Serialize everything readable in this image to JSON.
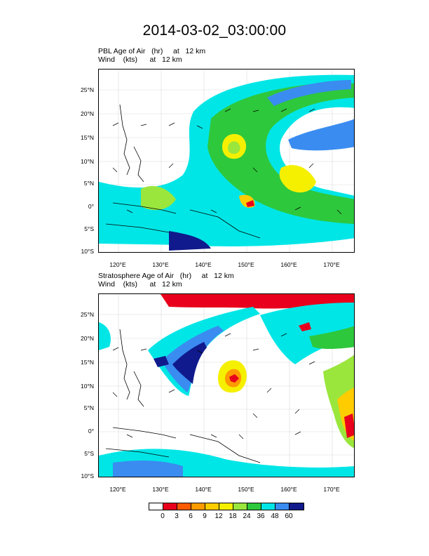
{
  "figure": {
    "title": "2014-03-02_03:00:00"
  },
  "panels": [
    {
      "label_line1": "PBL Age of Air   (hr)     at   12 km",
      "label_line2": "Wind    (kts)      at   12 km"
    },
    {
      "label_line1": "Stratosphere Age of Air   (hr)     at   12 km",
      "label_line2": "Wind    (kts)      at   12 km"
    }
  ],
  "axes": {
    "lat_labels": [
      "25°N",
      "20°N",
      "15°N",
      "10°N",
      "5°N",
      "0°",
      "5°S",
      "10°S"
    ],
    "lon_labels": [
      "120°E",
      "130°E",
      "140°E",
      "150°E",
      "160°E",
      "170°E"
    ]
  },
  "colorbar": {
    "labels": [
      "0",
      "3",
      "6",
      "9",
      "12",
      "18",
      "24",
      "36",
      "48",
      "60"
    ],
    "colors": [
      "#ffffff",
      "#e8001c",
      "#ff5a00",
      "#ff9a00",
      "#ffcc00",
      "#f5f000",
      "#9ae63c",
      "#2ec83c",
      "#00e6e6",
      "#3a8cf0",
      "#101a8c"
    ]
  }
}
